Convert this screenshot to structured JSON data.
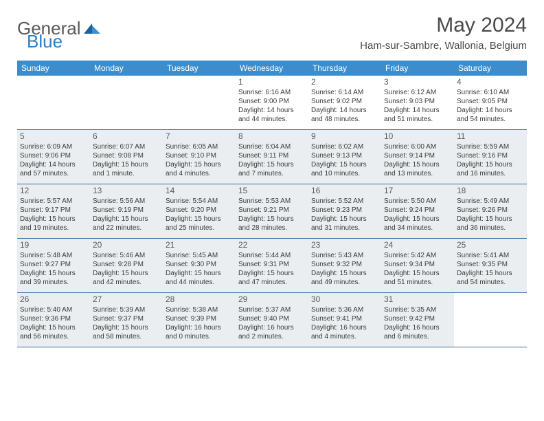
{
  "brand": {
    "text1": "General",
    "text2": "Blue"
  },
  "title": "May 2024",
  "location": "Ham-sur-Sambre, Wallonia, Belgium",
  "header_bg": "#3d8dcc",
  "shaded_bg": "#ebeef0",
  "border_color": "#3a6a9a",
  "weekdays": [
    "Sunday",
    "Monday",
    "Tuesday",
    "Wednesday",
    "Thursday",
    "Friday",
    "Saturday"
  ],
  "weeks": [
    [
      {
        "n": "",
        "sr": "",
        "ss": "",
        "dl": "",
        "shaded": false
      },
      {
        "n": "",
        "sr": "",
        "ss": "",
        "dl": "",
        "shaded": false
      },
      {
        "n": "",
        "sr": "",
        "ss": "",
        "dl": "",
        "shaded": false
      },
      {
        "n": "1",
        "sr": "Sunrise: 6:16 AM",
        "ss": "Sunset: 9:00 PM",
        "dl": "Daylight: 14 hours and 44 minutes.",
        "shaded": false
      },
      {
        "n": "2",
        "sr": "Sunrise: 6:14 AM",
        "ss": "Sunset: 9:02 PM",
        "dl": "Daylight: 14 hours and 48 minutes.",
        "shaded": false
      },
      {
        "n": "3",
        "sr": "Sunrise: 6:12 AM",
        "ss": "Sunset: 9:03 PM",
        "dl": "Daylight: 14 hours and 51 minutes.",
        "shaded": false
      },
      {
        "n": "4",
        "sr": "Sunrise: 6:10 AM",
        "ss": "Sunset: 9:05 PM",
        "dl": "Daylight: 14 hours and 54 minutes.",
        "shaded": false
      }
    ],
    [
      {
        "n": "5",
        "sr": "Sunrise: 6:09 AM",
        "ss": "Sunset: 9:06 PM",
        "dl": "Daylight: 14 hours and 57 minutes.",
        "shaded": true
      },
      {
        "n": "6",
        "sr": "Sunrise: 6:07 AM",
        "ss": "Sunset: 9:08 PM",
        "dl": "Daylight: 15 hours and 1 minute.",
        "shaded": true
      },
      {
        "n": "7",
        "sr": "Sunrise: 6:05 AM",
        "ss": "Sunset: 9:10 PM",
        "dl": "Daylight: 15 hours and 4 minutes.",
        "shaded": true
      },
      {
        "n": "8",
        "sr": "Sunrise: 6:04 AM",
        "ss": "Sunset: 9:11 PM",
        "dl": "Daylight: 15 hours and 7 minutes.",
        "shaded": true
      },
      {
        "n": "9",
        "sr": "Sunrise: 6:02 AM",
        "ss": "Sunset: 9:13 PM",
        "dl": "Daylight: 15 hours and 10 minutes.",
        "shaded": true
      },
      {
        "n": "10",
        "sr": "Sunrise: 6:00 AM",
        "ss": "Sunset: 9:14 PM",
        "dl": "Daylight: 15 hours and 13 minutes.",
        "shaded": true
      },
      {
        "n": "11",
        "sr": "Sunrise: 5:59 AM",
        "ss": "Sunset: 9:16 PM",
        "dl": "Daylight: 15 hours and 16 minutes.",
        "shaded": true
      }
    ],
    [
      {
        "n": "12",
        "sr": "Sunrise: 5:57 AM",
        "ss": "Sunset: 9:17 PM",
        "dl": "Daylight: 15 hours and 19 minutes.",
        "shaded": true
      },
      {
        "n": "13",
        "sr": "Sunrise: 5:56 AM",
        "ss": "Sunset: 9:19 PM",
        "dl": "Daylight: 15 hours and 22 minutes.",
        "shaded": true
      },
      {
        "n": "14",
        "sr": "Sunrise: 5:54 AM",
        "ss": "Sunset: 9:20 PM",
        "dl": "Daylight: 15 hours and 25 minutes.",
        "shaded": true
      },
      {
        "n": "15",
        "sr": "Sunrise: 5:53 AM",
        "ss": "Sunset: 9:21 PM",
        "dl": "Daylight: 15 hours and 28 minutes.",
        "shaded": true
      },
      {
        "n": "16",
        "sr": "Sunrise: 5:52 AM",
        "ss": "Sunset: 9:23 PM",
        "dl": "Daylight: 15 hours and 31 minutes.",
        "shaded": true
      },
      {
        "n": "17",
        "sr": "Sunrise: 5:50 AM",
        "ss": "Sunset: 9:24 PM",
        "dl": "Daylight: 15 hours and 34 minutes.",
        "shaded": true
      },
      {
        "n": "18",
        "sr": "Sunrise: 5:49 AM",
        "ss": "Sunset: 9:26 PM",
        "dl": "Daylight: 15 hours and 36 minutes.",
        "shaded": true
      }
    ],
    [
      {
        "n": "19",
        "sr": "Sunrise: 5:48 AM",
        "ss": "Sunset: 9:27 PM",
        "dl": "Daylight: 15 hours and 39 minutes.",
        "shaded": true
      },
      {
        "n": "20",
        "sr": "Sunrise: 5:46 AM",
        "ss": "Sunset: 9:28 PM",
        "dl": "Daylight: 15 hours and 42 minutes.",
        "shaded": true
      },
      {
        "n": "21",
        "sr": "Sunrise: 5:45 AM",
        "ss": "Sunset: 9:30 PM",
        "dl": "Daylight: 15 hours and 44 minutes.",
        "shaded": true
      },
      {
        "n": "22",
        "sr": "Sunrise: 5:44 AM",
        "ss": "Sunset: 9:31 PM",
        "dl": "Daylight: 15 hours and 47 minutes.",
        "shaded": true
      },
      {
        "n": "23",
        "sr": "Sunrise: 5:43 AM",
        "ss": "Sunset: 9:32 PM",
        "dl": "Daylight: 15 hours and 49 minutes.",
        "shaded": true
      },
      {
        "n": "24",
        "sr": "Sunrise: 5:42 AM",
        "ss": "Sunset: 9:34 PM",
        "dl": "Daylight: 15 hours and 51 minutes.",
        "shaded": true
      },
      {
        "n": "25",
        "sr": "Sunrise: 5:41 AM",
        "ss": "Sunset: 9:35 PM",
        "dl": "Daylight: 15 hours and 54 minutes.",
        "shaded": true
      }
    ],
    [
      {
        "n": "26",
        "sr": "Sunrise: 5:40 AM",
        "ss": "Sunset: 9:36 PM",
        "dl": "Daylight: 15 hours and 56 minutes.",
        "shaded": true
      },
      {
        "n": "27",
        "sr": "Sunrise: 5:39 AM",
        "ss": "Sunset: 9:37 PM",
        "dl": "Daylight: 15 hours and 58 minutes.",
        "shaded": true
      },
      {
        "n": "28",
        "sr": "Sunrise: 5:38 AM",
        "ss": "Sunset: 9:39 PM",
        "dl": "Daylight: 16 hours and 0 minutes.",
        "shaded": true
      },
      {
        "n": "29",
        "sr": "Sunrise: 5:37 AM",
        "ss": "Sunset: 9:40 PM",
        "dl": "Daylight: 16 hours and 2 minutes.",
        "shaded": true
      },
      {
        "n": "30",
        "sr": "Sunrise: 5:36 AM",
        "ss": "Sunset: 9:41 PM",
        "dl": "Daylight: 16 hours and 4 minutes.",
        "shaded": true
      },
      {
        "n": "31",
        "sr": "Sunrise: 5:35 AM",
        "ss": "Sunset: 9:42 PM",
        "dl": "Daylight: 16 hours and 6 minutes.",
        "shaded": true
      },
      {
        "n": "",
        "sr": "",
        "ss": "",
        "dl": "",
        "shaded": false
      }
    ]
  ]
}
